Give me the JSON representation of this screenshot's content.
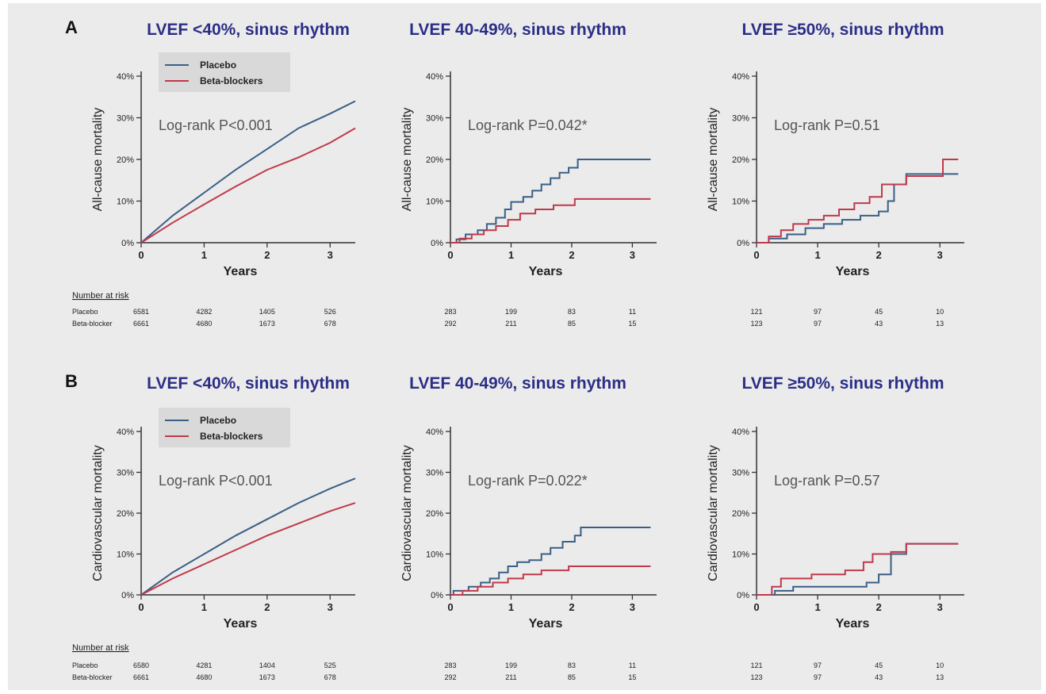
{
  "colors": {
    "placebo": "#3a5f86",
    "beta_blockers": "#c0394b",
    "title": "#2b2e86",
    "axis": "#333333",
    "text": "#222222",
    "annotation": "#555555",
    "legend_bg": "#d9d9d9",
    "background": "#ebebeb"
  },
  "legend": {
    "placebo": "Placebo",
    "beta_blockers": "Beta-blockers"
  },
  "risk_table": {
    "heading": "Number at risk",
    "row_labels": [
      "Placebo",
      "Beta-blocker"
    ]
  },
  "chart_data": [
    {
      "type": "line",
      "panel_letter": "A",
      "title": "LVEF <40%, sinus rhythm",
      "xlabel": "Years",
      "ylabel": "All-cause mortality",
      "xlim": [
        0,
        3.4
      ],
      "ylim": [
        0,
        40
      ],
      "xticks": [
        "0",
        "1",
        "2",
        "3"
      ],
      "yticks": [
        "0%",
        "10%",
        "20%",
        "30%",
        "40%"
      ],
      "annotation": "Log-rank P<0.001",
      "series": [
        {
          "name": "Placebo",
          "x": [
            0,
            0.5,
            1,
            1.5,
            2,
            2.5,
            3,
            3.4
          ],
          "y": [
            0,
            6.5,
            12,
            17.5,
            22.5,
            27.5,
            31,
            34
          ]
        },
        {
          "name": "Beta-blockers",
          "x": [
            0,
            0.5,
            1,
            1.5,
            2,
            2.5,
            3,
            3.4
          ],
          "y": [
            0,
            4.8,
            9.2,
            13.5,
            17.5,
            20.5,
            24,
            27.5
          ]
        }
      ],
      "risk": {
        "placebo": [
          "6581",
          "4282",
          "1405",
          "526"
        ],
        "beta_blocker": [
          "6661",
          "4680",
          "1673",
          "678"
        ]
      }
    },
    {
      "type": "line",
      "panel_letter": "",
      "title": "LVEF 40-49%, sinus rhythm",
      "xlabel": "Years",
      "ylabel": "All-cause mortality",
      "xlim": [
        0,
        3.4
      ],
      "ylim": [
        0,
        40
      ],
      "xticks": [
        "0",
        "1",
        "2",
        "3"
      ],
      "yticks": [
        "0%",
        "10%",
        "20%",
        "30%",
        "40%"
      ],
      "annotation": "Log-rank P=0.042*",
      "series": [
        {
          "name": "Placebo",
          "step": true,
          "x": [
            0,
            0.1,
            0.25,
            0.45,
            0.6,
            0.75,
            0.9,
            1.0,
            1.2,
            1.35,
            1.5,
            1.65,
            1.8,
            1.95,
            2.1,
            3.3
          ],
          "y": [
            0,
            0.8,
            2,
            3,
            4.5,
            6,
            8,
            9.8,
            11,
            12.5,
            14,
            15.5,
            16.8,
            18,
            20,
            20
          ]
        },
        {
          "name": "Beta-blockers",
          "step": true,
          "x": [
            0,
            0.15,
            0.35,
            0.55,
            0.75,
            0.95,
            1.15,
            1.4,
            1.7,
            2.05,
            3.3
          ],
          "y": [
            0,
            1,
            2,
            3,
            4,
            5.5,
            7,
            8,
            9,
            10.5,
            10.5
          ]
        }
      ],
      "risk": {
        "placebo": [
          "283",
          "199",
          "83",
          "11"
        ],
        "beta_blocker": [
          "292",
          "211",
          "85",
          "15"
        ]
      }
    },
    {
      "type": "line",
      "panel_letter": "",
      "title": "LVEF ≥50%, sinus rhythm",
      "xlabel": "Years",
      "ylabel": "All-cause mortality",
      "xlim": [
        0,
        3.4
      ],
      "ylim": [
        0,
        40
      ],
      "xticks": [
        "0",
        "1",
        "2",
        "3"
      ],
      "yticks": [
        "0%",
        "10%",
        "20%",
        "30%",
        "40%"
      ],
      "annotation": "Log-rank P=0.51",
      "series": [
        {
          "name": "Placebo",
          "step": true,
          "x": [
            0,
            0.2,
            0.5,
            0.8,
            1.1,
            1.4,
            1.7,
            2.0,
            2.15,
            2.25,
            2.45,
            2.6,
            3.3
          ],
          "y": [
            0,
            1,
            2,
            3.5,
            4.5,
            5.5,
            6.5,
            7.5,
            10,
            14,
            16.5,
            16.5,
            16.5
          ]
        },
        {
          "name": "Beta-blockers",
          "step": true,
          "x": [
            0,
            0.2,
            0.4,
            0.6,
            0.85,
            1.1,
            1.35,
            1.6,
            1.85,
            2.05,
            2.45,
            3.05,
            3.3
          ],
          "y": [
            0,
            1.5,
            3,
            4.5,
            5.5,
            6.5,
            8,
            9.5,
            11,
            14,
            16,
            20,
            20
          ]
        }
      ],
      "risk": {
        "placebo": [
          "121",
          "97",
          "45",
          "10"
        ],
        "beta_blocker": [
          "123",
          "97",
          "43",
          "13"
        ]
      }
    },
    {
      "type": "line",
      "panel_letter": "B",
      "title": "LVEF <40%, sinus rhythm",
      "xlabel": "Years",
      "ylabel": "Cardiovascular mortality",
      "xlim": [
        0,
        3.4
      ],
      "ylim": [
        0,
        40
      ],
      "xticks": [
        "0",
        "1",
        "2",
        "3"
      ],
      "yticks": [
        "0%",
        "10%",
        "20%",
        "30%",
        "40%"
      ],
      "annotation": "Log-rank P<0.001",
      "series": [
        {
          "name": "Placebo",
          "x": [
            0,
            0.5,
            1,
            1.5,
            2,
            2.5,
            3,
            3.4
          ],
          "y": [
            0,
            5.5,
            10,
            14.5,
            18.5,
            22.5,
            26,
            28.5
          ]
        },
        {
          "name": "Beta-blockers",
          "x": [
            0,
            0.5,
            1,
            1.5,
            2,
            2.5,
            3,
            3.4
          ],
          "y": [
            0,
            4,
            7.5,
            11,
            14.5,
            17.5,
            20.5,
            22.5
          ]
        }
      ],
      "risk": {
        "placebo": [
          "6580",
          "4281",
          "1404",
          "525"
        ],
        "beta_blocker": [
          "6661",
          "4680",
          "1673",
          "678"
        ]
      }
    },
    {
      "type": "line",
      "panel_letter": "",
      "title": "LVEF 40-49%, sinus rhythm",
      "xlabel": "Years",
      "ylabel": "Cardiovascular mortality",
      "xlim": [
        0,
        3.4
      ],
      "ylim": [
        0,
        40
      ],
      "xticks": [
        "0",
        "1",
        "2",
        "3"
      ],
      "yticks": [
        "0%",
        "10%",
        "20%",
        "30%",
        "40%"
      ],
      "annotation": "Log-rank P=0.022*",
      "series": [
        {
          "name": "Placebo",
          "step": true,
          "x": [
            0,
            0.05,
            0.3,
            0.5,
            0.65,
            0.8,
            0.95,
            1.1,
            1.3,
            1.5,
            1.65,
            1.85,
            2.05,
            2.15,
            3.3
          ],
          "y": [
            0,
            1,
            2,
            3,
            4,
            5.5,
            7,
            8,
            8.5,
            10,
            11.5,
            13,
            14.5,
            16.5,
            16.5
          ]
        },
        {
          "name": "Beta-blockers",
          "step": true,
          "x": [
            0,
            0.2,
            0.45,
            0.7,
            0.95,
            1.2,
            1.5,
            1.95,
            3.3
          ],
          "y": [
            0,
            1,
            2,
            3,
            4,
            5,
            6,
            7,
            7
          ]
        }
      ],
      "risk": {
        "placebo": [
          "283",
          "199",
          "83",
          "11"
        ],
        "beta_blocker": [
          "292",
          "211",
          "85",
          "15"
        ]
      }
    },
    {
      "type": "line",
      "panel_letter": "",
      "title": "LVEF ≥50%, sinus rhythm",
      "xlabel": "Years",
      "ylabel": "Cardiovascular mortality",
      "xlim": [
        0,
        3.4
      ],
      "ylim": [
        0,
        40
      ],
      "xticks": [
        "0",
        "1",
        "2",
        "3"
      ],
      "yticks": [
        "0%",
        "10%",
        "20%",
        "30%",
        "40%"
      ],
      "annotation": "Log-rank P=0.57",
      "series": [
        {
          "name": "Placebo",
          "step": true,
          "x": [
            0,
            0.3,
            0.6,
            0.9,
            1.2,
            1.5,
            1.8,
            2.0,
            2.2,
            2.45,
            3.3
          ],
          "y": [
            0,
            1,
            2,
            2,
            2,
            2,
            3,
            5,
            10,
            12.5,
            12.5
          ]
        },
        {
          "name": "Beta-blockers",
          "step": true,
          "x": [
            0,
            0.25,
            0.4,
            0.9,
            1.45,
            1.75,
            1.9,
            2.2,
            2.45,
            3.3
          ],
          "y": [
            0,
            2,
            4,
            5,
            6,
            8,
            10,
            10.5,
            12.5,
            12.5
          ]
        }
      ],
      "risk": {
        "placebo": [
          "121",
          "97",
          "45",
          "10"
        ],
        "beta_blocker": [
          "123",
          "97",
          "43",
          "13"
        ]
      }
    }
  ]
}
